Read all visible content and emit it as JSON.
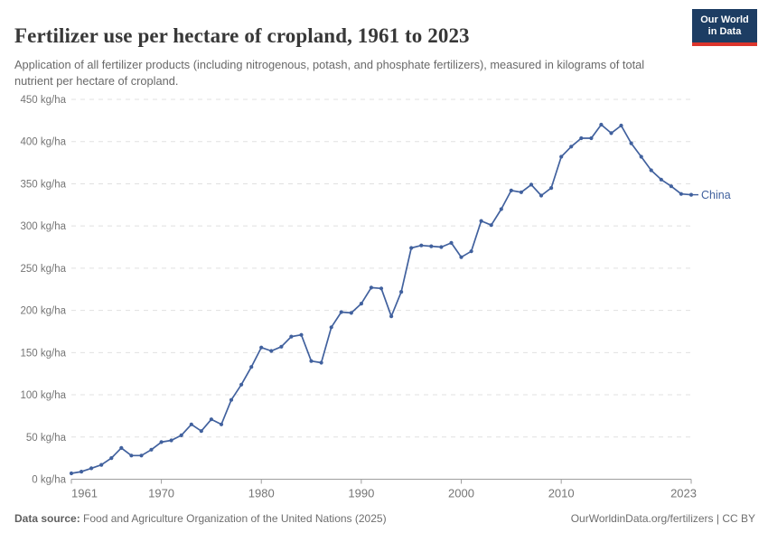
{
  "header": {
    "title": "Fertilizer use per hectare of cropland, 1961 to 2023",
    "subtitle": "Application of all fertilizer products (including nitrogenous, potash, and phosphate fertilizers), measured in kilograms of total nutrient per hectare of cropland.",
    "logo": {
      "line1": "Our World",
      "line2": "in Data",
      "bg_color": "#1d3d63",
      "accent_color": "#dc352c"
    }
  },
  "chart_data": {
    "type": "line",
    "title": "Fertilizer use per hectare of cropland, 1961 to 2023",
    "x": [
      1961,
      1962,
      1963,
      1964,
      1965,
      1966,
      1967,
      1968,
      1969,
      1970,
      1971,
      1972,
      1973,
      1974,
      1975,
      1976,
      1977,
      1978,
      1979,
      1980,
      1981,
      1982,
      1983,
      1984,
      1985,
      1986,
      1987,
      1988,
      1989,
      1990,
      1991,
      1992,
      1993,
      1994,
      1995,
      1996,
      1997,
      1998,
      1999,
      2000,
      2001,
      2002,
      2003,
      2004,
      2005,
      2006,
      2007,
      2008,
      2009,
      2010,
      2011,
      2012,
      2013,
      2014,
      2015,
      2016,
      2017,
      2018,
      2019,
      2020,
      2021,
      2022,
      2023
    ],
    "series": [
      {
        "name": "China",
        "color": "#41619e",
        "values": [
          7,
          9,
          13,
          17,
          25,
          37,
          28,
          28,
          35,
          44,
          46,
          52,
          65,
          57,
          71,
          65,
          94,
          112,
          133,
          156,
          152,
          157,
          169,
          171,
          140,
          138,
          180,
          198,
          197,
          208,
          227,
          226,
          193,
          222,
          274,
          277,
          276,
          275,
          280,
          263,
          270,
          306,
          301,
          320,
          342,
          340,
          349,
          336,
          345,
          382,
          394,
          404,
          404,
          420,
          410,
          419,
          398,
          382,
          366,
          355,
          347,
          338,
          337
        ]
      }
    ],
    "y_unit": "kg/ha",
    "ylim": [
      0,
      450
    ],
    "y_ticks": [
      0,
      50,
      100,
      150,
      200,
      250,
      300,
      350,
      400,
      450
    ],
    "x_ticks": [
      1961,
      1970,
      1980,
      1990,
      2000,
      2010,
      2023
    ],
    "grid": "horizontal-dashed",
    "legend_position": "end-of-line",
    "colors": {
      "grid": "#e0e0e0",
      "axis": "#9e9e9e",
      "tick_text": "#757575"
    }
  },
  "footer": {
    "source_label": "Data source:",
    "source_text": " Food and Agriculture Organization of the United Nations (2025)",
    "credit": "OurWorldinData.org/fertilizers | CC BY"
  }
}
